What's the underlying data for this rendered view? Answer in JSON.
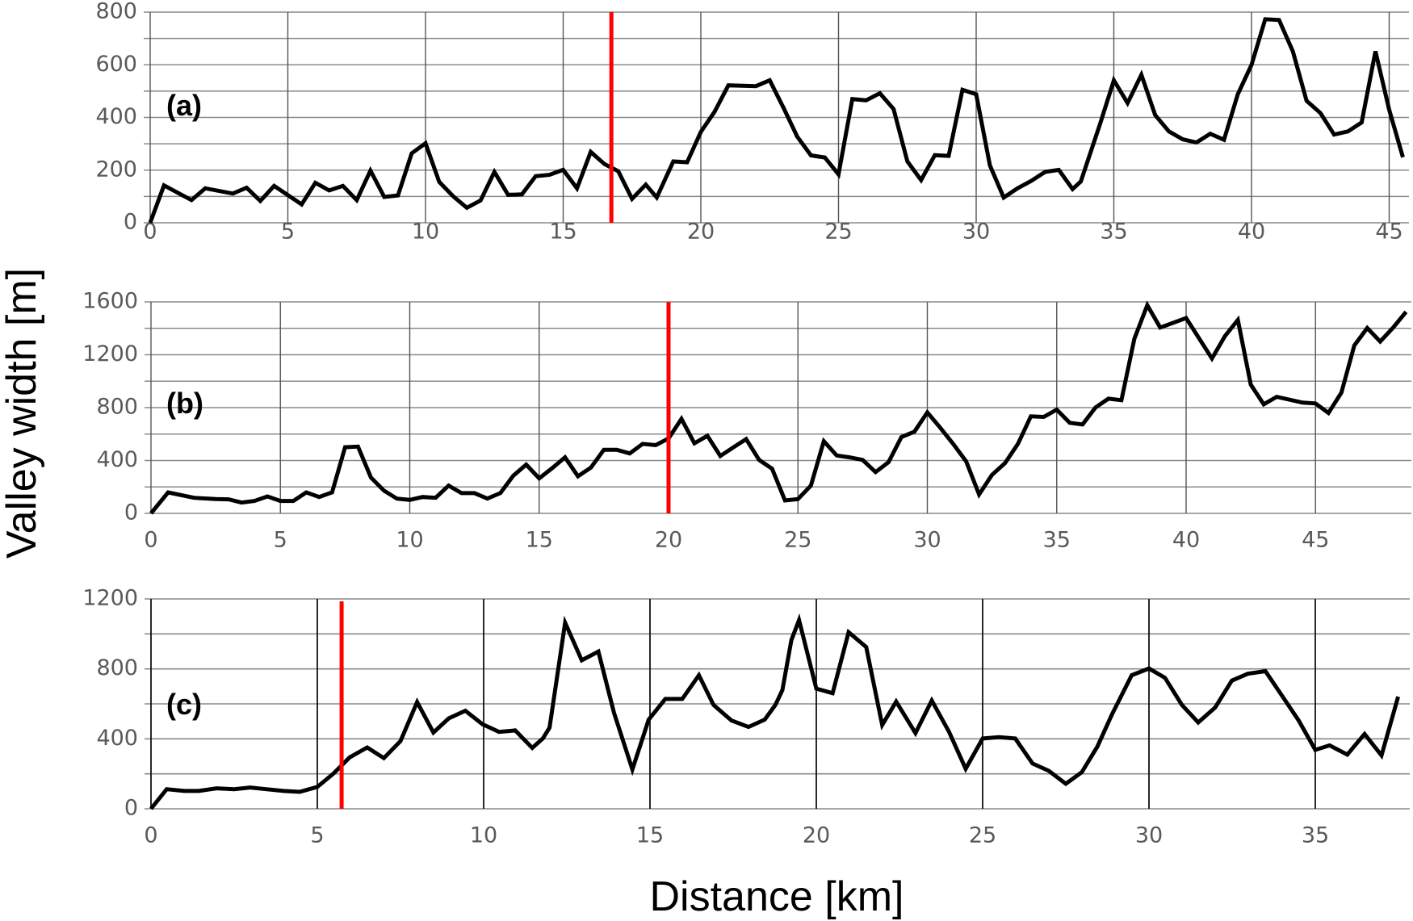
{
  "figure": {
    "ylabel": "Valley width [m]",
    "xlabel": "Distance [km]",
    "colors": {
      "series": "#000000",
      "marker": "#ff0000",
      "grid": "#8a8a8a",
      "tick_text": "#595959"
    }
  },
  "chart_data": [
    {
      "type": "line",
      "panel": "(a)",
      "xlabel": "Distance [km]",
      "ylabel": "Valley width [m]",
      "xlim": [
        0,
        45.75
      ],
      "ylim": [
        0,
        800
      ],
      "xticks": [
        0,
        5,
        10,
        15,
        20,
        25,
        30,
        35,
        40,
        45
      ],
      "yticks": [
        0,
        200,
        400,
        600,
        800
      ],
      "minor_ygrid_step": 100,
      "grid": true,
      "vertical_marker_km": 16.75,
      "x": [
        0,
        0.5,
        1.5,
        2,
        3,
        3.5,
        4,
        4.5,
        5.5,
        6,
        6.5,
        7,
        7.5,
        8,
        8.5,
        9,
        9.5,
        10,
        10.5,
        11,
        11.5,
        12,
        12.5,
        13,
        13.5,
        14,
        14.5,
        15,
        15.5,
        16,
        16.5,
        17,
        17.5,
        18,
        18.4,
        19,
        19.5,
        20,
        20.5,
        21,
        22,
        22.5,
        23,
        23.5,
        24,
        24.5,
        25,
        25.5,
        26,
        26.5,
        27,
        27.5,
        28,
        28.5,
        29,
        29.5,
        30,
        30.5,
        31,
        31.5,
        32,
        32.5,
        33,
        33.5,
        33.8,
        34.5,
        35,
        35.5,
        36,
        36.5,
        37,
        37.5,
        38,
        38.5,
        39,
        39.5,
        40,
        40.5,
        41,
        41.5,
        42,
        42.5,
        43,
        43.5,
        44,
        44.5,
        45,
        45.5
      ],
      "values": [
        0,
        142,
        86,
        131,
        111,
        133,
        83,
        140,
        70,
        152,
        123,
        140,
        86,
        198,
        98,
        104,
        264,
        302,
        155,
        101,
        57,
        85,
        193,
        106,
        108,
        177,
        182,
        201,
        131,
        269,
        223,
        196,
        91,
        145,
        96,
        233,
        230,
        345,
        422,
        522,
        519,
        541,
        437,
        327,
        256,
        248,
        184,
        470,
        465,
        492,
        432,
        233,
        162,
        257,
        254,
        505,
        488,
        218,
        96,
        131,
        159,
        193,
        201,
        128,
        157,
        376,
        541,
        455,
        562,
        409,
        347,
        317,
        305,
        338,
        315,
        488,
        600,
        773,
        770,
        651,
        463,
        417,
        335,
        347,
        381,
        651,
        429,
        249
      ]
    },
    {
      "type": "line",
      "panel": "(b)",
      "xlabel": "Distance [km]",
      "ylabel": "Valley width [m]",
      "xlim": [
        0,
        48.75
      ],
      "ylim": [
        0,
        1600
      ],
      "xticks": [
        0,
        5,
        10,
        15,
        20,
        25,
        30,
        35,
        40,
        45
      ],
      "yticks": [
        0,
        400,
        800,
        1200,
        1600
      ],
      "minor_ygrid_step": 200,
      "grid": true,
      "vertical_marker_km": 20,
      "x": [
        0,
        0.66,
        1.66,
        2.5,
        3,
        3.5,
        4,
        4.5,
        5,
        5.5,
        6,
        6.5,
        7,
        7.5,
        8,
        8.5,
        9,
        9.5,
        10,
        10.5,
        11,
        11.5,
        12,
        12.5,
        13,
        13.5,
        14,
        14.5,
        15,
        15.5,
        16,
        16.5,
        17,
        17.5,
        18,
        18.5,
        19,
        19.5,
        20,
        20.5,
        21,
        21.5,
        22,
        22.5,
        23,
        23.5,
        24,
        24.5,
        25,
        25.5,
        26,
        26.5,
        27,
        27.5,
        28,
        28.5,
        29,
        29.5,
        30,
        30.5,
        31,
        31.5,
        32,
        32.5,
        33,
        33.5,
        34,
        34.5,
        35,
        35.5,
        36,
        36.5,
        37,
        37.5,
        38,
        38.5,
        39,
        40,
        41,
        41.5,
        42,
        42.5,
        43,
        43.5,
        44.5,
        45,
        45.5,
        46,
        46.5,
        47,
        47.5,
        48,
        48.5
      ],
      "values": [
        0,
        159,
        118,
        108,
        106,
        82,
        94,
        128,
        94,
        94,
        159,
        124,
        159,
        501,
        505,
        271,
        173,
        112,
        102,
        124,
        118,
        210,
        153,
        153,
        112,
        153,
        285,
        369,
        265,
        342,
        424,
        281,
        346,
        481,
        481,
        454,
        526,
        516,
        567,
        715,
        530,
        587,
        434,
        499,
        562,
        404,
        338,
        98,
        108,
        210,
        546,
        438,
        424,
        404,
        312,
        387,
        577,
        618,
        764,
        648,
        526,
        393,
        143,
        291,
        379,
        526,
        734,
        730,
        785,
        685,
        673,
        801,
        868,
        856,
        1321,
        1575,
        1406,
        1478,
        1172,
        1341,
        1463,
        974,
        825,
        882,
        838,
        832,
        760,
        913,
        1270,
        1402,
        1300,
        1406,
        1524
      ]
    },
    {
      "type": "line",
      "panel": "(c)",
      "xlabel": "Distance [km]",
      "ylabel": "Valley width [m]",
      "xlim": [
        0,
        37.75
      ],
      "ylim": [
        0,
        1200
      ],
      "xticks": [
        0,
        5,
        10,
        15,
        20,
        25,
        30,
        35
      ],
      "yticks": [
        0,
        400,
        800,
        1200
      ],
      "minor_ygrid_step": 200,
      "grid": true,
      "vertical_marker_km": 5.73,
      "x": [
        0,
        0.47,
        1,
        1.44,
        1.97,
        2.5,
        2.98,
        3.46,
        3.99,
        4.47,
        5,
        5.49,
        5.97,
        6.5,
        7,
        7.5,
        8,
        8.49,
        8.95,
        9.45,
        9.96,
        10.46,
        10.95,
        11.46,
        11.78,
        11.98,
        12.45,
        12.95,
        13.45,
        13.92,
        14.47,
        14.96,
        15.46,
        15.97,
        16.47,
        16.91,
        17.45,
        17.96,
        18.45,
        18.77,
        18.98,
        19.25,
        19.48,
        20,
        20.49,
        20.97,
        21.5,
        21.98,
        22.4,
        22.98,
        23.47,
        23.99,
        24.49,
        25,
        25.49,
        25.98,
        26.5,
        26.99,
        27.5,
        27.98,
        28.45,
        28.89,
        29.48,
        30,
        30.48,
        30.99,
        31.48,
        31.99,
        32.49,
        32.97,
        33.5,
        34.02,
        34.5,
        35,
        35.43,
        35.96,
        36.48,
        36.99,
        37.49
      ],
      "values": [
        0,
        112,
        102,
        102,
        117,
        112,
        122,
        112,
        102,
        97,
        125,
        202,
        294,
        351,
        290,
        387,
        610,
        436,
        517,
        561,
        484,
        440,
        448,
        348,
        402,
        464,
        1064,
        849,
        899,
        548,
        225,
        510,
        628,
        628,
        764,
        594,
        505,
        468,
        510,
        594,
        679,
        964,
        1079,
        687,
        661,
        1010,
        925,
        479,
        613,
        433,
        619,
        440,
        229,
        402,
        410,
        402,
        259,
        217,
        143,
        209,
        356,
        541,
        764,
        802,
        749,
        594,
        494,
        579,
        733,
        772,
        787,
        641,
        505,
        337,
        363,
        310,
        428,
        305,
        641
      ]
    }
  ]
}
